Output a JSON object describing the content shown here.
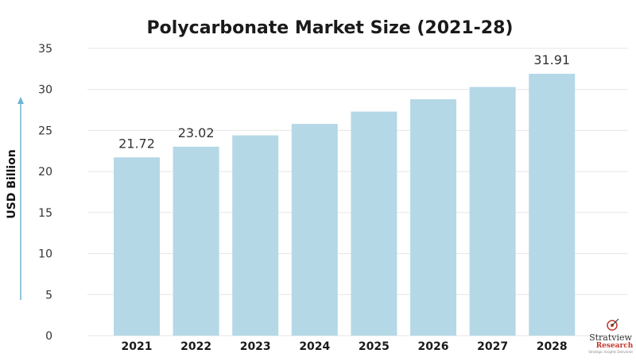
{
  "chart_data": {
    "type": "bar",
    "title": "Polycarbonate Market Size (2021-28)",
    "xlabel": "",
    "ylabel": "USD Billion",
    "categories": [
      "2021",
      "2022",
      "2023",
      "2024",
      "2025",
      "2026",
      "2027",
      "2028"
    ],
    "values": [
      21.72,
      23.02,
      24.4,
      25.8,
      27.3,
      28.8,
      30.3,
      31.91
    ],
    "data_labels": [
      "21.72",
      "23.02",
      "",
      "",
      "",
      "",
      "",
      "31.91"
    ],
    "ylim": [
      0,
      35
    ],
    "yticks": [
      0,
      5,
      10,
      15,
      20,
      25,
      30,
      35
    ],
    "grid": true,
    "bar_color": "#b5d8e7",
    "grid_color": "#e6e6e6",
    "axis_arrow_color": "#6fb3d2"
  },
  "logo": {
    "name": "Stratview",
    "sub": "Research",
    "tagline": "Strategic Insights Delivered"
  }
}
